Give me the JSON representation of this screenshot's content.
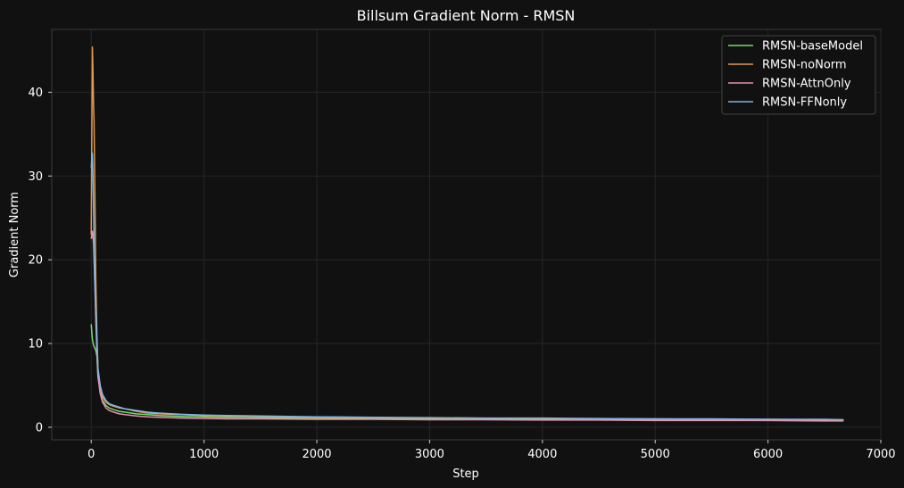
{
  "chart_data": {
    "type": "line",
    "title": "Billsum Gradient Norm - RMSN",
    "xlabel": "Step",
    "ylabel": "Gradient Norm",
    "xlim": [
      -350,
      7000
    ],
    "ylim": [
      -1.5,
      47.5
    ],
    "xticks": [
      0,
      1000,
      2000,
      3000,
      4000,
      5000,
      6000,
      7000
    ],
    "yticks": [
      0,
      10,
      20,
      30,
      40
    ],
    "grid": true,
    "legend_position": "top-right",
    "background": "#111111",
    "series": [
      {
        "name": "RMSN-baseModel",
        "color": "#77dd66",
        "x": [
          0,
          10,
          20,
          30,
          40,
          50,
          60,
          80,
          100,
          130,
          160,
          200,
          250,
          300,
          400,
          500,
          600,
          800,
          1000,
          1200,
          1500,
          2000,
          2500,
          3000,
          3500,
          4000,
          4500,
          5000,
          5500,
          6000,
          6500,
          6670
        ],
        "y": [
          12.3,
          10.5,
          9.8,
          9.5,
          9.2,
          8.5,
          6.0,
          4.2,
          3.2,
          2.6,
          2.3,
          2.1,
          1.9,
          1.8,
          1.6,
          1.5,
          1.4,
          1.3,
          1.25,
          1.2,
          1.15,
          1.1,
          1.05,
          1.0,
          1.0,
          0.95,
          0.95,
          0.9,
          0.9,
          0.85,
          0.85,
          0.85
        ]
      },
      {
        "name": "RMSN-noNorm",
        "color": "#e09a50",
        "x": [
          0,
          10,
          15,
          20,
          25,
          30,
          35,
          40,
          50,
          60,
          80,
          100,
          130,
          160,
          200,
          250,
          300,
          400,
          500,
          600,
          800,
          1000,
          1200,
          1500,
          2000,
          2500,
          3000,
          3500,
          4000,
          4500,
          5000,
          5500,
          6000,
          6500,
          6670
        ],
        "y": [
          23.0,
          45.4,
          43.0,
          38.5,
          36.5,
          31.0,
          24.5,
          18.0,
          11.0,
          7.0,
          4.6,
          3.6,
          3.0,
          2.7,
          2.5,
          2.3,
          2.2,
          1.9,
          1.7,
          1.6,
          1.5,
          1.4,
          1.35,
          1.3,
          1.2,
          1.15,
          1.1,
          1.05,
          1.05,
          1.0,
          1.0,
          0.95,
          0.95,
          0.9,
          0.9
        ]
      },
      {
        "name": "RMSN-AttnOnly",
        "color": "#e890b0",
        "x": [
          0,
          10,
          20,
          30,
          40,
          50,
          60,
          80,
          100,
          130,
          160,
          200,
          250,
          300,
          400,
          500,
          600,
          800,
          1000,
          1200,
          1500,
          2000,
          2500,
          3000,
          3500,
          4000,
          4500,
          5000,
          5500,
          6000,
          6500,
          6670
        ],
        "y": [
          22.5,
          23.4,
          22.0,
          18.0,
          13.0,
          9.0,
          6.2,
          4.0,
          3.0,
          2.3,
          2.0,
          1.8,
          1.6,
          1.5,
          1.35,
          1.25,
          1.2,
          1.1,
          1.05,
          1.0,
          1.0,
          0.95,
          0.95,
          0.9,
          0.9,
          0.85,
          0.85,
          0.8,
          0.8,
          0.8,
          0.75,
          0.75
        ]
      },
      {
        "name": "RMSN-FFNonly",
        "color": "#7ab8e8",
        "x": [
          0,
          10,
          15,
          20,
          25,
          30,
          40,
          50,
          60,
          80,
          100,
          130,
          160,
          200,
          250,
          300,
          400,
          500,
          600,
          800,
          1000,
          1200,
          1500,
          2000,
          2500,
          3000,
          3500,
          4000,
          4500,
          5000,
          5500,
          6000,
          6500,
          6670
        ],
        "y": [
          31.0,
          32.7,
          30.5,
          26.0,
          22.0,
          18.0,
          14.5,
          10.0,
          7.0,
          5.0,
          3.9,
          3.2,
          2.8,
          2.6,
          2.4,
          2.2,
          2.0,
          1.8,
          1.7,
          1.55,
          1.45,
          1.4,
          1.35,
          1.25,
          1.2,
          1.15,
          1.1,
          1.1,
          1.05,
          1.0,
          1.0,
          0.95,
          0.95,
          0.9
        ]
      }
    ]
  }
}
